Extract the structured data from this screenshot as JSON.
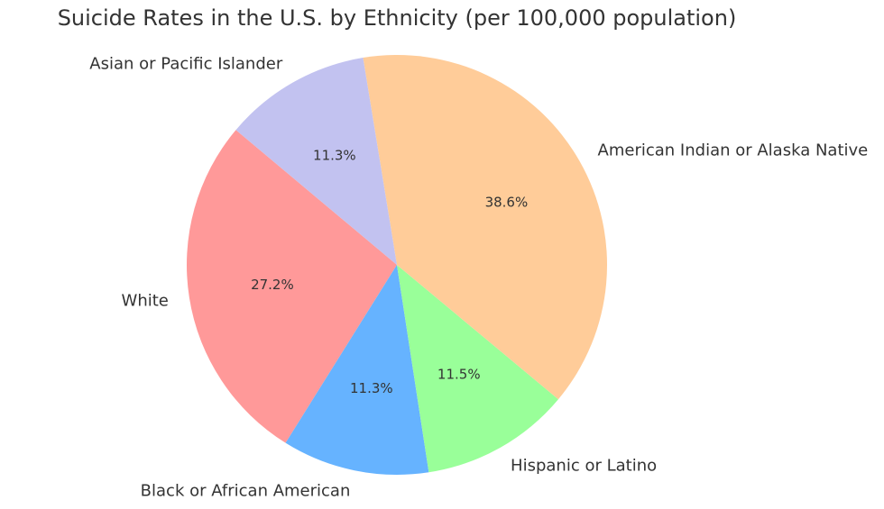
{
  "chart_data": {
    "type": "pie",
    "title": "Suicide Rates in the U.S. by Ethnicity (per 100,000 population)",
    "categories": [
      "White",
      "Black or African American",
      "Hispanic or Latino",
      "American Indian or Alaska Native",
      "Asian or Pacific Islander"
    ],
    "values": [
      27.2,
      11.3,
      11.5,
      38.6,
      11.3
    ],
    "value_labels": [
      "27.2%",
      "11.3%",
      "11.5%",
      "38.6%",
      "11.3%"
    ],
    "colors": [
      "#ff9999",
      "#66b3ff",
      "#99ff99",
      "#ffcc99",
      "#c2c2f0"
    ],
    "start_angle_deg": 140,
    "direction": "counterclockwise",
    "legend": "none"
  }
}
